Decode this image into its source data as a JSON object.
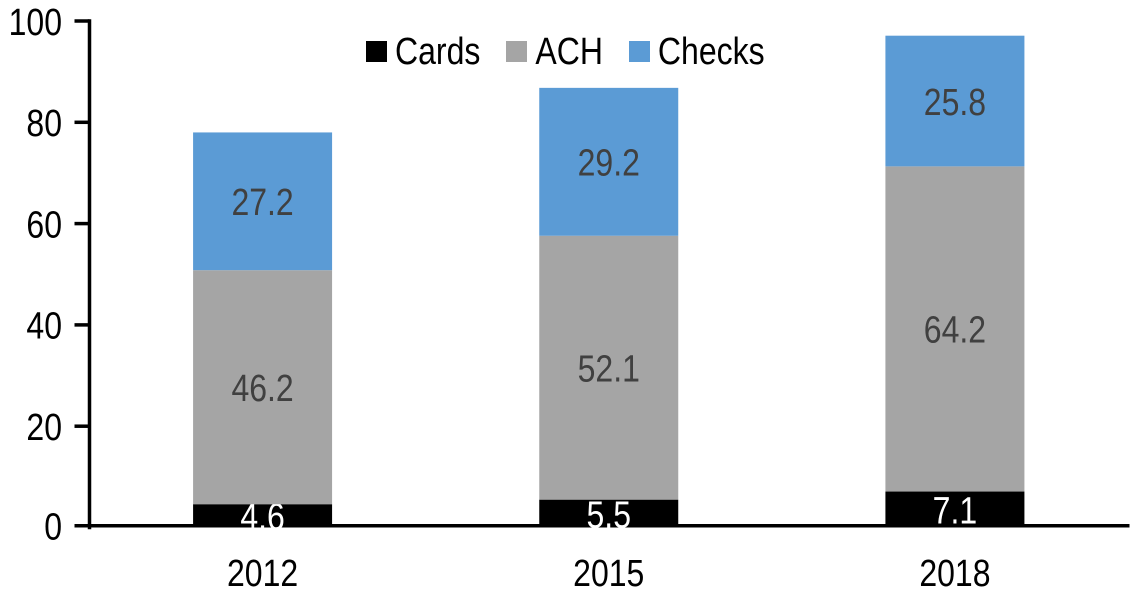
{
  "chart_data": {
    "type": "bar",
    "stacked": true,
    "title": "",
    "xlabel": "",
    "ylabel": "",
    "categories": [
      "2012",
      "2015",
      "2018"
    ],
    "series": [
      {
        "name": "Cards",
        "color": "#000000",
        "label_color": "#ffffff",
        "values": [
          4.6,
          5.5,
          7.1
        ]
      },
      {
        "name": "ACH",
        "color": "#A5A5A5",
        "label_color": "#404040",
        "values": [
          46.2,
          52.1,
          64.2
        ]
      },
      {
        "name": "Checks",
        "color": "#5B9BD5",
        "label_color": "#404040",
        "values": [
          27.2,
          29.2,
          25.8
        ]
      }
    ],
    "totals": [
      78.0,
      86.8,
      97.1
    ],
    "ylim": [
      0,
      100
    ],
    "yticks": [
      0,
      20,
      40,
      60,
      80,
      100
    ],
    "grid": false,
    "legend_position": "top-center",
    "axis_color": "#000000",
    "background_color": "#ffffff",
    "value_label_decimals": 1
  }
}
